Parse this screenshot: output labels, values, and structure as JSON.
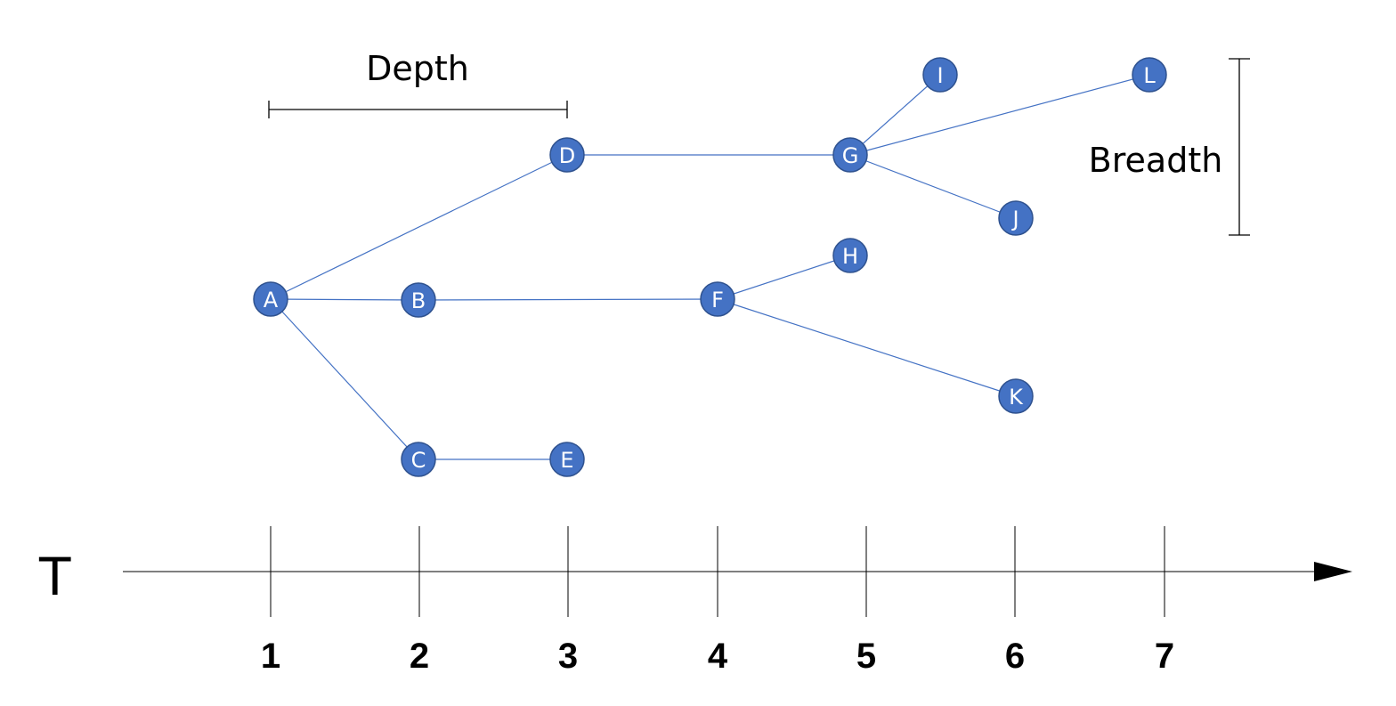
{
  "annotations": {
    "depth_label": "Depth",
    "breadth_label": "Breadth"
  },
  "axis": {
    "title": "T",
    "ticks": [
      "1",
      "2",
      "3",
      "4",
      "5",
      "6",
      "7"
    ]
  },
  "nodes": [
    {
      "id": "A",
      "label": "A"
    },
    {
      "id": "B",
      "label": "B"
    },
    {
      "id": "C",
      "label": "C"
    },
    {
      "id": "D",
      "label": "D"
    },
    {
      "id": "E",
      "label": "E"
    },
    {
      "id": "F",
      "label": "F"
    },
    {
      "id": "G",
      "label": "G"
    },
    {
      "id": "H",
      "label": "H"
    },
    {
      "id": "I",
      "label": "I"
    },
    {
      "id": "J",
      "label": "J"
    },
    {
      "id": "K",
      "label": "K"
    },
    {
      "id": "L",
      "label": "L"
    }
  ],
  "edges": [
    {
      "from": "A",
      "to": "D"
    },
    {
      "from": "A",
      "to": "B"
    },
    {
      "from": "A",
      "to": "C"
    },
    {
      "from": "B",
      "to": "F"
    },
    {
      "from": "C",
      "to": "E"
    },
    {
      "from": "D",
      "to": "G"
    },
    {
      "from": "F",
      "to": "H"
    },
    {
      "from": "F",
      "to": "K"
    },
    {
      "from": "G",
      "to": "I"
    },
    {
      "from": "G",
      "to": "J"
    },
    {
      "from": "G",
      "to": "L"
    }
  ],
  "colors": {
    "node_fill": "#4472C4",
    "node_stroke": "#2F528F",
    "edge": "#4472C4",
    "node_text": "#FFFFFF",
    "axis": "#000000"
  }
}
